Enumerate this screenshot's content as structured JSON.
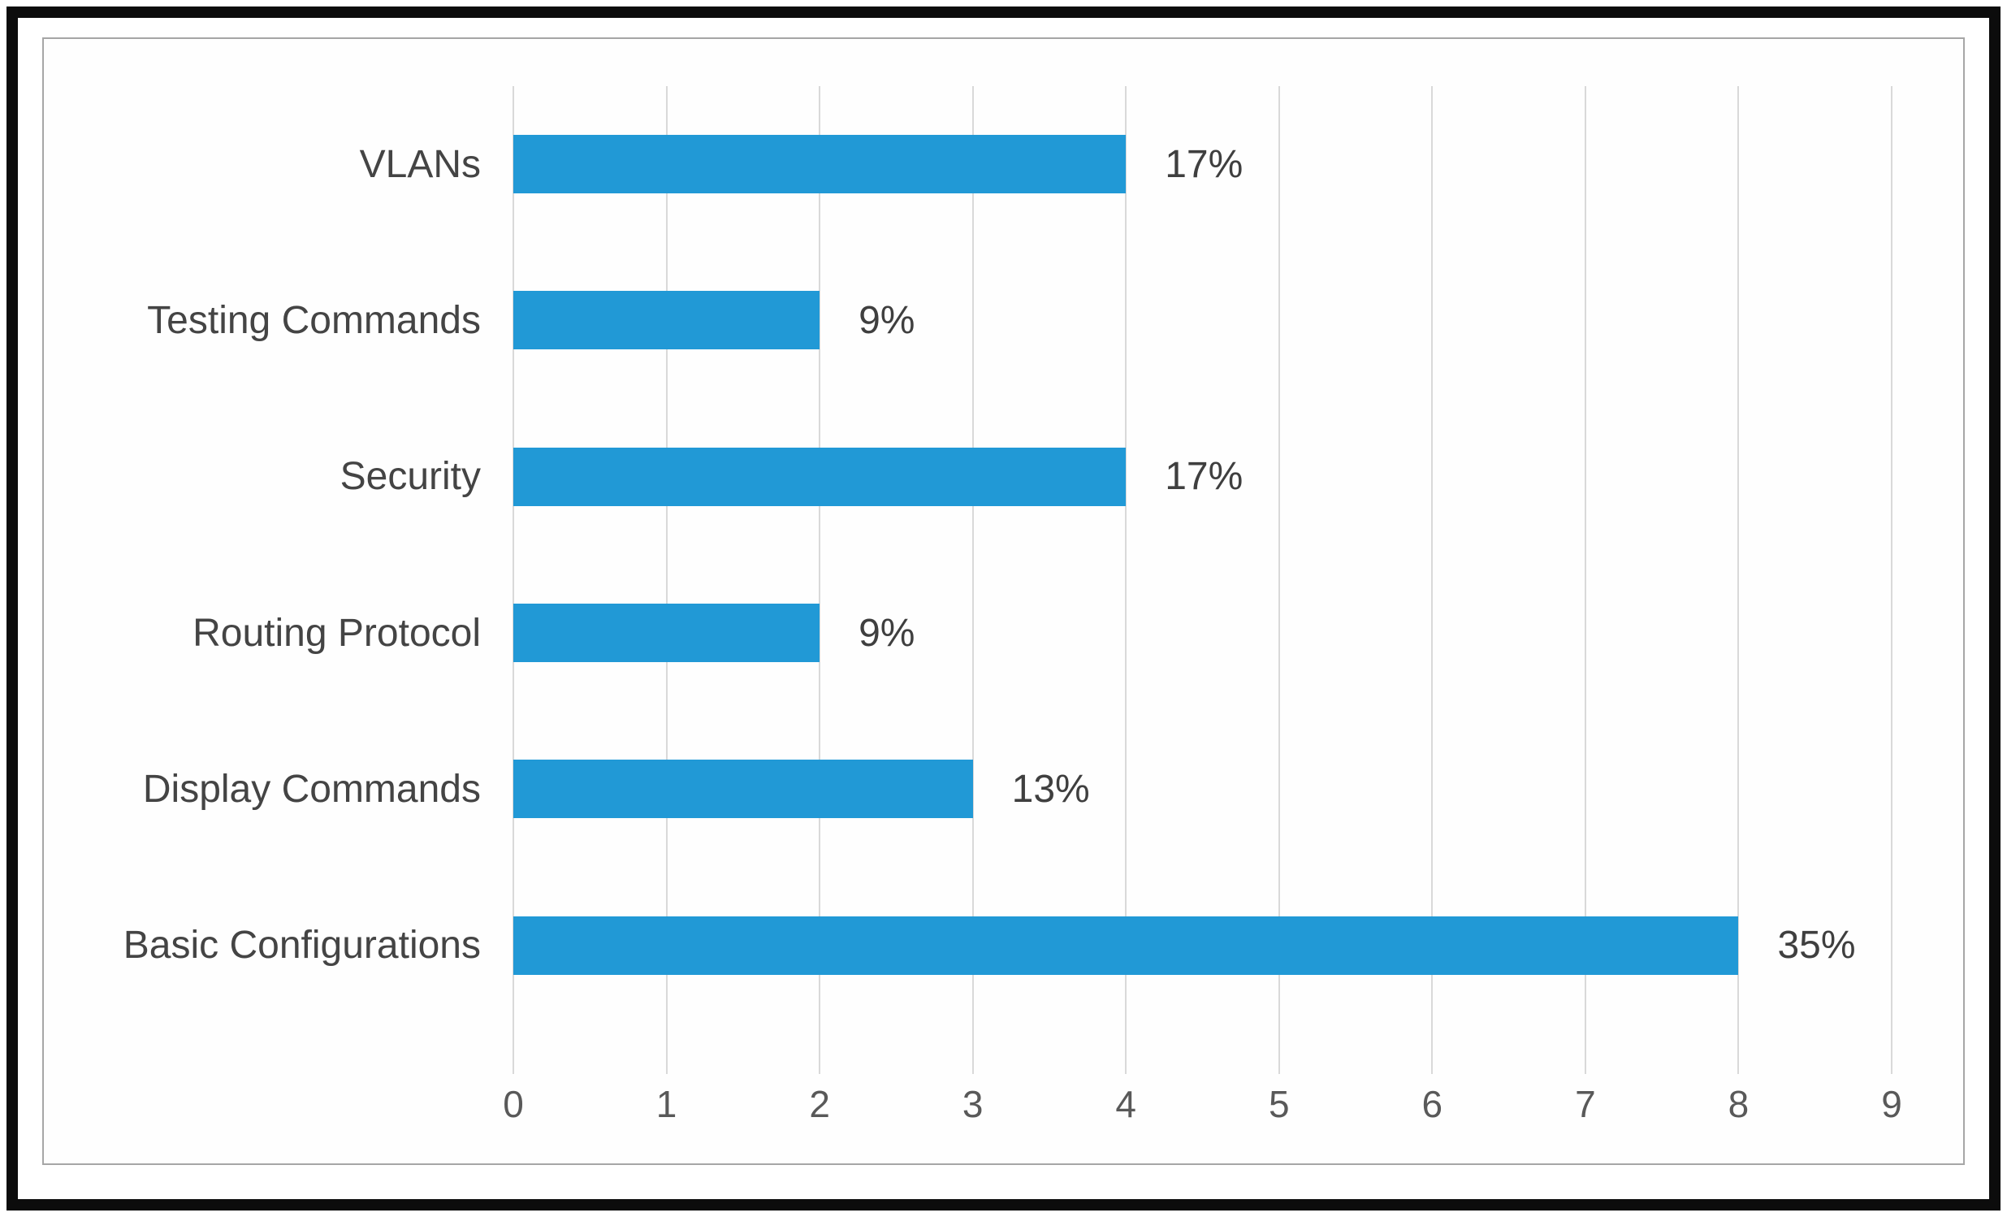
{
  "colors": {
    "bar": "#2199D6",
    "gridline": "#D9D9D9",
    "category_text": "#444444",
    "value_text": "#3F3F3F",
    "tick_text": "#595959",
    "frame_border": "#A6A6A6",
    "outer_border": "#0C0C0C",
    "background": "#FFFFFF"
  },
  "chart_data": {
    "type": "bar",
    "orientation": "horizontal",
    "title": "",
    "categories": [
      "VLANs",
      "Testing Commands",
      "Security",
      "Routing Protocol",
      "Display Commands",
      "Basic Configurations"
    ],
    "values": [
      4,
      2,
      4,
      2,
      3,
      8
    ],
    "value_labels": [
      "17%",
      "9%",
      "17%",
      "9%",
      "13%",
      "35%"
    ],
    "xlabel": "",
    "ylabel": "",
    "xlim": [
      0,
      9
    ],
    "x_ticks": [
      0,
      1,
      2,
      3,
      4,
      5,
      6,
      7,
      8,
      9
    ],
    "grid": "vertical-gridlines",
    "legend": "none"
  }
}
